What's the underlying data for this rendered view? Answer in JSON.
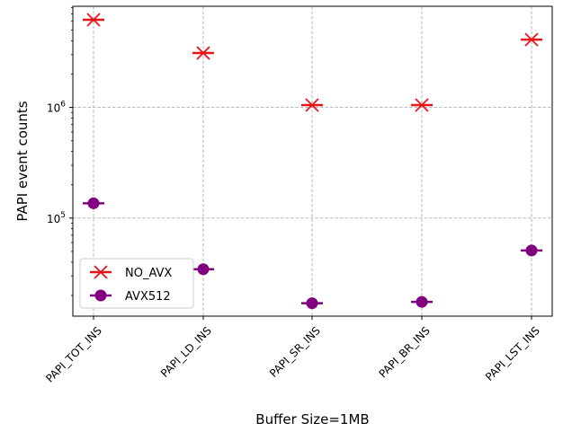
{
  "chart_data": {
    "type": "scatter",
    "title": "",
    "xlabel": "Buffer Size=1MB",
    "ylabel": "PAPI event counts",
    "categories": [
      "PAPI_TOT_INS",
      "PAPI_LD_INS",
      "PAPI_SR_INS",
      "PAPI_BR_INS",
      "PAPI_LST_INS"
    ],
    "y_scale": "log",
    "ylim": [
      13000,
      8200000
    ],
    "y_ticks": [
      {
        "value": 100000,
        "base": "10",
        "exp": "5"
      },
      {
        "value": 1000000,
        "base": "10",
        "exp": "6"
      }
    ],
    "grid": true,
    "legend_position": "lower-left",
    "series": [
      {
        "name": "NO_AVX",
        "marker": "x",
        "color": "#e8141a",
        "values": [
          6200000,
          3100000,
          1050000,
          1050000,
          4100000
        ]
      },
      {
        "name": "AVX512",
        "marker": "circle",
        "color": "#800080",
        "values": [
          136000,
          34500,
          17000,
          17500,
          51000
        ]
      }
    ]
  }
}
